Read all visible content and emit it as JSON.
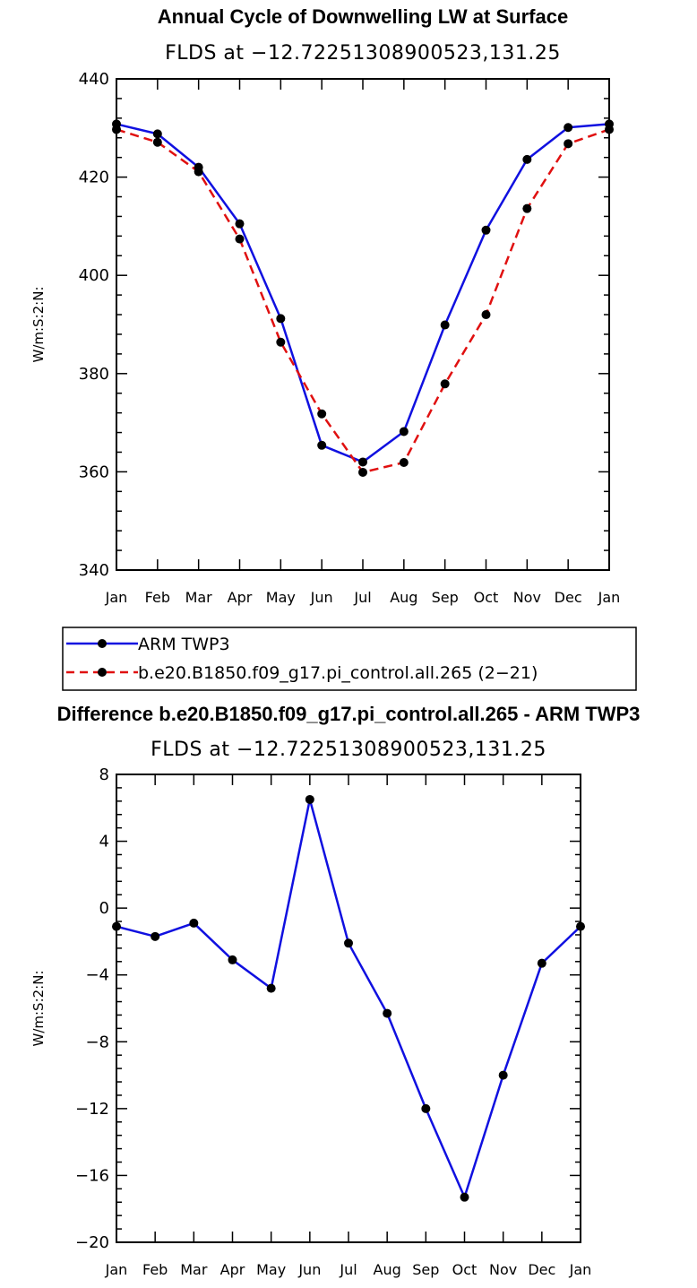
{
  "chart_data": [
    {
      "type": "line",
      "title": "Annual Cycle of Downwelling LW at Surface",
      "subtitle": "FLDS at −12.72251308900523,131.25",
      "xlabel": "",
      "ylabel": "W/m:S:2:N:",
      "categories": [
        "Jan",
        "Feb",
        "Mar",
        "Apr",
        "May",
        "Jun",
        "Jul",
        "Aug",
        "Sep",
        "Oct",
        "Nov",
        "Dec",
        "Jan"
      ],
      "ylim": [
        340,
        440
      ],
      "yticks": [
        340,
        360,
        380,
        400,
        420,
        440
      ],
      "ytick_labels": [
        "340",
        "360",
        "380",
        "400",
        "420",
        "440"
      ],
      "series": [
        {
          "name": "ARM TWP3",
          "color": "#1010e0",
          "dash": "solid",
          "values": [
            430.8,
            428.8,
            422.0,
            410.5,
            391.2,
            365.4,
            362.0,
            368.2,
            389.9,
            409.2,
            423.6,
            430.1,
            430.8
          ]
        },
        {
          "name": "b.e20.B1850.f09_g17.pi_control.all.265 (2−21)",
          "color": "#e01010",
          "dash": "dashed",
          "values": [
            429.7,
            427.1,
            421.1,
            407.4,
            386.4,
            371.8,
            359.9,
            361.9,
            377.9,
            392.0,
            413.6,
            426.8,
            429.7
          ]
        }
      ],
      "legend": [
        "ARM TWP3",
        "b.e20.B1850.f09_g17.pi_control.all.265 (2−21)"
      ]
    },
    {
      "type": "line",
      "title": "Difference b.e20.B1850.f09_g17.pi_control.all.265 - ARM TWP3",
      "subtitle": "FLDS at −12.72251308900523,131.25",
      "xlabel": "",
      "ylabel": "W/m:S:2:N:",
      "categories": [
        "Jan",
        "Feb",
        "Mar",
        "Apr",
        "May",
        "Jun",
        "Jul",
        "Aug",
        "Sep",
        "Oct",
        "Nov",
        "Dec",
        "Jan"
      ],
      "ylim": [
        -20,
        8
      ],
      "yticks": [
        -20,
        -16,
        -12,
        -8,
        -4,
        0,
        4,
        8
      ],
      "ytick_labels": [
        "−20",
        "−16",
        "−12",
        "−8",
        "−4",
        "0",
        "4",
        "8"
      ],
      "series": [
        {
          "name": "Difference",
          "color": "#1010e0",
          "dash": "solid",
          "values": [
            -1.1,
            -1.7,
            -0.9,
            -3.1,
            -4.8,
            6.5,
            -2.1,
            -6.3,
            -12.0,
            -17.3,
            -10.0,
            -3.3,
            -1.1
          ]
        }
      ]
    }
  ]
}
